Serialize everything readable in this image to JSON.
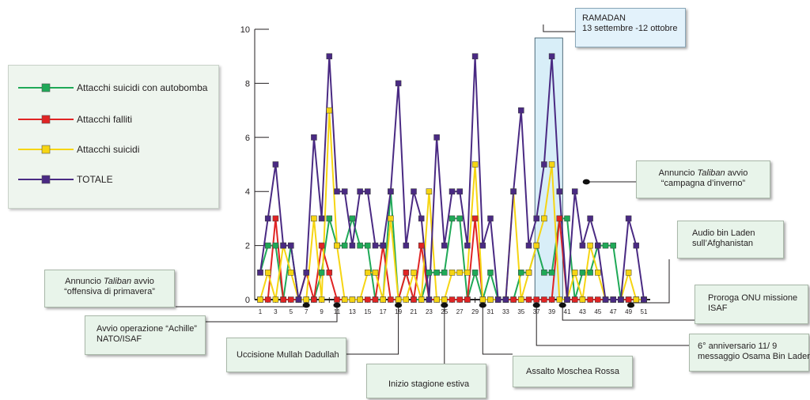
{
  "legend": [
    {
      "label": "Attacchi suicidi con autobomba",
      "color": "#1fa957"
    },
    {
      "label": "Attacchi falliti",
      "color": "#e02424"
    },
    {
      "label": "Attacchi suicidi",
      "color": "#f6d513"
    },
    {
      "label": "TOTALE",
      "color": "#4a2a83"
    }
  ],
  "annotations": {
    "ramadan": {
      "line1": "RAMADAN",
      "line2": "13 settembre -12 ottobre"
    },
    "winter": {
      "pre": "Annuncio ",
      "em": "Taliban",
      "post": " avvio",
      "line2": "“campagna d’inverno”"
    },
    "audio": {
      "line1": "Audio bin Laden",
      "line2": "sull’Afghanistan"
    },
    "spring": {
      "pre": "Annuncio ",
      "em": "Taliban",
      "post": " avvio",
      "line2": "“offensiva di primavera”"
    },
    "onu": {
      "line1": "Proroga ONU missione",
      "line2": "ISAF"
    },
    "achille": {
      "line1": "Avvio operazione “Achille”",
      "line2": "NATO/ISAF"
    },
    "dadullah": {
      "line1": "Uccisione Mullah Dadullah"
    },
    "anniversario": {
      "line1": "6° anniversario 11/ 9",
      "line2": "messaggio Osama Bin Laden"
    },
    "moschea": {
      "line1": "Assalto Moschea Rossa"
    },
    "estiva": {
      "line1": "Inizio stagione estiva"
    }
  },
  "chart_data": {
    "type": "line",
    "x": [
      1,
      2,
      3,
      4,
      5,
      6,
      7,
      8,
      9,
      10,
      11,
      12,
      13,
      14,
      15,
      16,
      17,
      18,
      19,
      20,
      21,
      22,
      23,
      24,
      25,
      26,
      27,
      28,
      29,
      30,
      31,
      32,
      33,
      34,
      35,
      36,
      37,
      38,
      39,
      40,
      41,
      42,
      43,
      44,
      45,
      46,
      47,
      48,
      49,
      50,
      51
    ],
    "x_tick_labels": [
      "1",
      "3",
      "5",
      "7",
      "9",
      "11",
      "13",
      "15",
      "17",
      "19",
      "21",
      "23",
      "25",
      "27",
      "29",
      "31",
      "33",
      "35",
      "37",
      "39",
      "41",
      "43",
      "45",
      "47",
      "49",
      "51"
    ],
    "y_tick_labels": [
      "0",
      "2",
      "4",
      "6",
      "8",
      "10"
    ],
    "ylim": [
      0,
      10
    ],
    "grid": false,
    "legend_position": "left",
    "series": [
      {
        "name": "Attacchi suicidi con autobomba",
        "color": "#1fa957",
        "values": [
          1,
          2,
          2,
          0,
          2,
          0,
          0,
          0,
          1,
          3,
          2,
          2,
          3,
          2,
          2,
          0,
          0,
          4,
          0,
          1,
          0,
          0,
          1,
          1,
          1,
          3,
          3,
          0,
          1,
          0,
          1,
          0,
          0,
          0,
          1,
          1,
          2,
          1,
          1,
          3,
          3,
          0,
          1,
          1,
          2,
          2,
          2,
          0,
          0,
          0,
          0
        ]
      },
      {
        "name": "Attacchi falliti",
        "color": "#e02424",
        "values": [
          0,
          0,
          3,
          0,
          0,
          0,
          1,
          0,
          2,
          1,
          0,
          0,
          0,
          0,
          0,
          0,
          2,
          0,
          0,
          1,
          0,
          2,
          0,
          0,
          0,
          0,
          0,
          0,
          3,
          0,
          0,
          0,
          0,
          0,
          0,
          0,
          0,
          0,
          0,
          3,
          0,
          0,
          0,
          0,
          0,
          0,
          0,
          0,
          0,
          0,
          0
        ]
      },
      {
        "name": "Attacchi suicidi",
        "color": "#f6d513",
        "values": [
          0,
          1,
          0,
          2,
          1,
          0,
          0,
          3,
          0,
          7,
          2,
          0,
          0,
          0,
          1,
          1,
          0,
          3,
          0,
          0,
          1,
          0,
          4,
          0,
          0,
          1,
          1,
          1,
          5,
          0,
          0,
          0,
          0,
          4,
          0,
          1,
          2,
          3,
          5,
          0,
          0,
          1,
          0,
          2,
          1,
          0,
          0,
          0,
          1,
          0,
          0
        ]
      },
      {
        "name": "TOTALE",
        "color": "#4a2a83",
        "values": [
          1,
          3,
          5,
          2,
          2,
          0,
          1,
          6,
          3,
          9,
          4,
          4,
          2,
          4,
          4,
          2,
          2,
          4,
          8,
          2,
          4,
          3,
          0,
          6,
          2,
          4,
          4,
          2,
          9,
          2,
          3,
          0,
          0,
          4,
          7,
          2,
          3,
          5,
          9,
          4,
          0,
          4,
          2,
          3,
          2,
          0,
          0,
          0,
          3,
          2,
          0
        ]
      }
    ],
    "highlight": {
      "x_start": 37,
      "x_end": 40
    }
  }
}
